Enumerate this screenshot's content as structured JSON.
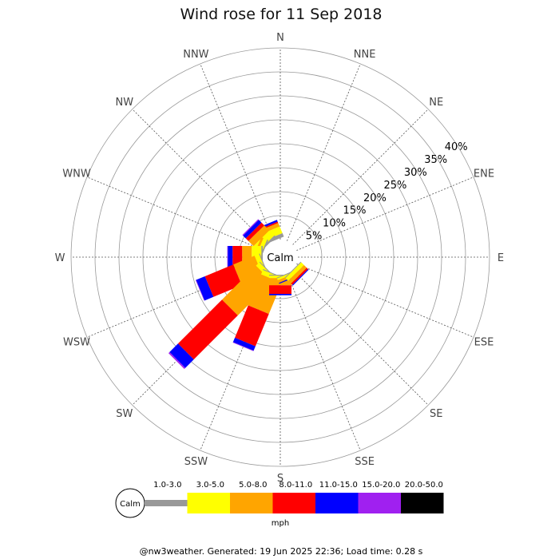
{
  "chart_data": {
    "type": "windrose",
    "title": "Wind rose for 11 Sep 2018",
    "directions": [
      "N",
      "NNE",
      "NE",
      "ENE",
      "E",
      "ESE",
      "SE",
      "SSE",
      "S",
      "SSW",
      "SW",
      "WSW",
      "W",
      "WNW",
      "NW",
      "NNW"
    ],
    "rings": [
      5,
      10,
      15,
      20,
      25,
      30,
      35,
      40
    ],
    "ring_label_suffix": "%",
    "rmax": 40,
    "calm_label": "Calm",
    "unit": "mph",
    "bins": [
      {
        "label": "1.0-3.0",
        "color": "#999999"
      },
      {
        "label": "3.0-5.0",
        "color": "#ffff00"
      },
      {
        "label": "5.0-8.0",
        "color": "#ffa500"
      },
      {
        "label": "8.0-11.0",
        "color": "#ff0000"
      },
      {
        "label": "11.0-15.0",
        "color": "#0000ff"
      },
      {
        "label": "15.0-20.0",
        "color": "#a020f0"
      },
      {
        "label": "20.0-50.0",
        "color": "#000000"
      }
    ],
    "series": [
      {
        "direction": "NNW",
        "values": [
          0.8,
          1.5,
          0.8,
          0.3,
          0.4,
          0,
          0
        ]
      },
      {
        "direction": "NW",
        "values": [
          0.4,
          1.5,
          1.5,
          0.8,
          0.8,
          0.2,
          0
        ]
      },
      {
        "direction": "WNW",
        "values": [
          0.3,
          0.8,
          0.5,
          0,
          0,
          0,
          0
        ]
      },
      {
        "direction": "W",
        "values": [
          0.3,
          2.0,
          2.0,
          2.0,
          1.0,
          0.1,
          0
        ]
      },
      {
        "direction": "WSW",
        "values": [
          0.2,
          1.0,
          4.8,
          6.4,
          2.0,
          0.1,
          0
        ]
      },
      {
        "direction": "SW",
        "values": [
          0.2,
          1.0,
          10.0,
          13.0,
          2.5,
          0.3,
          0
        ]
      },
      {
        "direction": "SSW",
        "values": [
          0.2,
          1.0,
          7.0,
          7.3,
          1.0,
          0.1,
          0
        ]
      },
      {
        "direction": "S",
        "values": [
          0.2,
          0.5,
          1.5,
          1.8,
          0.3,
          0,
          0
        ]
      },
      {
        "direction": "SSE",
        "values": [
          0.2,
          0.4,
          0.6,
          0,
          0.2,
          0,
          0
        ]
      },
      {
        "direction": "SE",
        "values": [
          0.2,
          0.8,
          0.8,
          0.4,
          0.2,
          0,
          0
        ]
      }
    ]
  },
  "footer": "@nw3weather. Generated: 19 Jun 2025 22:36; Load time: 0.28 s"
}
